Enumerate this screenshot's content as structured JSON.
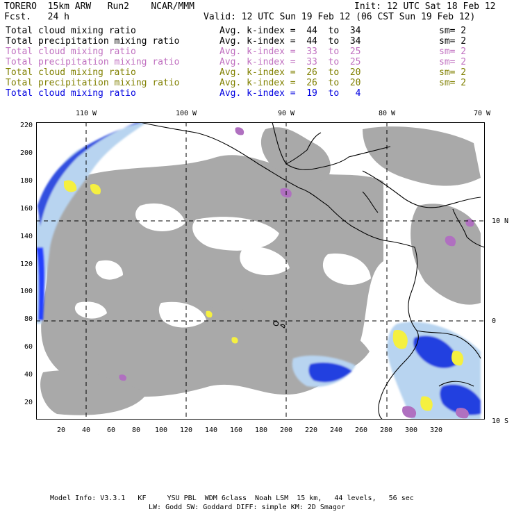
{
  "header": {
    "title_left": "TORERO  15km ARW   Run2    NCAR/MMM",
    "init": "Init: 12 UTC Sat 18 Feb 12",
    "fcst": "Fcst.   24 h",
    "valid": "Valid: 12 UTC Sun 19 Feb 12 (06 CST Sun 19 Feb 12)"
  },
  "legend": [
    {
      "field": "Total cloud mixing ratio",
      "kindex": "Avg. k-index =  44  to  34",
      "sm": "sm= 2",
      "color": "#000000"
    },
    {
      "field": "Total precipitation mixing ratio",
      "kindex": "Avg. k-index =  44  to  34",
      "sm": "sm= 2",
      "color": "#000000"
    },
    {
      "field": "Total cloud mixing ratio",
      "kindex": "Avg. k-index =  33  to  25",
      "sm": "sm= 2",
      "color": "#c070c0"
    },
    {
      "field": "Total precipitation mixing ratio",
      "kindex": "Avg. k-index =  33  to  25",
      "sm": "sm= 2",
      "color": "#c070c0"
    },
    {
      "field": "Total cloud mixing ratio",
      "kindex": "Avg. k-index =  26  to  20",
      "sm": "sm= 2",
      "color": "#808000"
    },
    {
      "field": "Total precipitation mixing ratio",
      "kindex": "Avg. k-index =  26  to  20",
      "sm": "sm= 2",
      "color": "#808000"
    },
    {
      "field": "Total cloud mixing ratio",
      "kindex": "Avg. k-index =  19  to   4",
      "sm": "",
      "color": "#0000e0"
    }
  ],
  "map": {
    "top_labels": [
      "110 W",
      "100 W",
      "90 W",
      "80 W",
      "70 W"
    ],
    "right_labels": [
      "10 N",
      "0",
      "10 S"
    ],
    "y_ticks": [
      "220",
      "200",
      "180",
      "160",
      "140",
      "120",
      "100",
      "80",
      "60",
      "40",
      "20"
    ],
    "x_ticks": [
      "20",
      "40",
      "60",
      "80",
      "100",
      "120",
      "140",
      "160",
      "180",
      "200",
      "220",
      "240",
      "260",
      "280",
      "300",
      "320"
    ]
  },
  "footer": {
    "line1": "Model Info: V3.3.1   KF     YSU PBL  WDM 6class  Noah LSM  15 km,   44 levels,   56 sec",
    "line2": "LW: Godd SW: Goddard DIFF: simple KM: 2D Smagor"
  }
}
